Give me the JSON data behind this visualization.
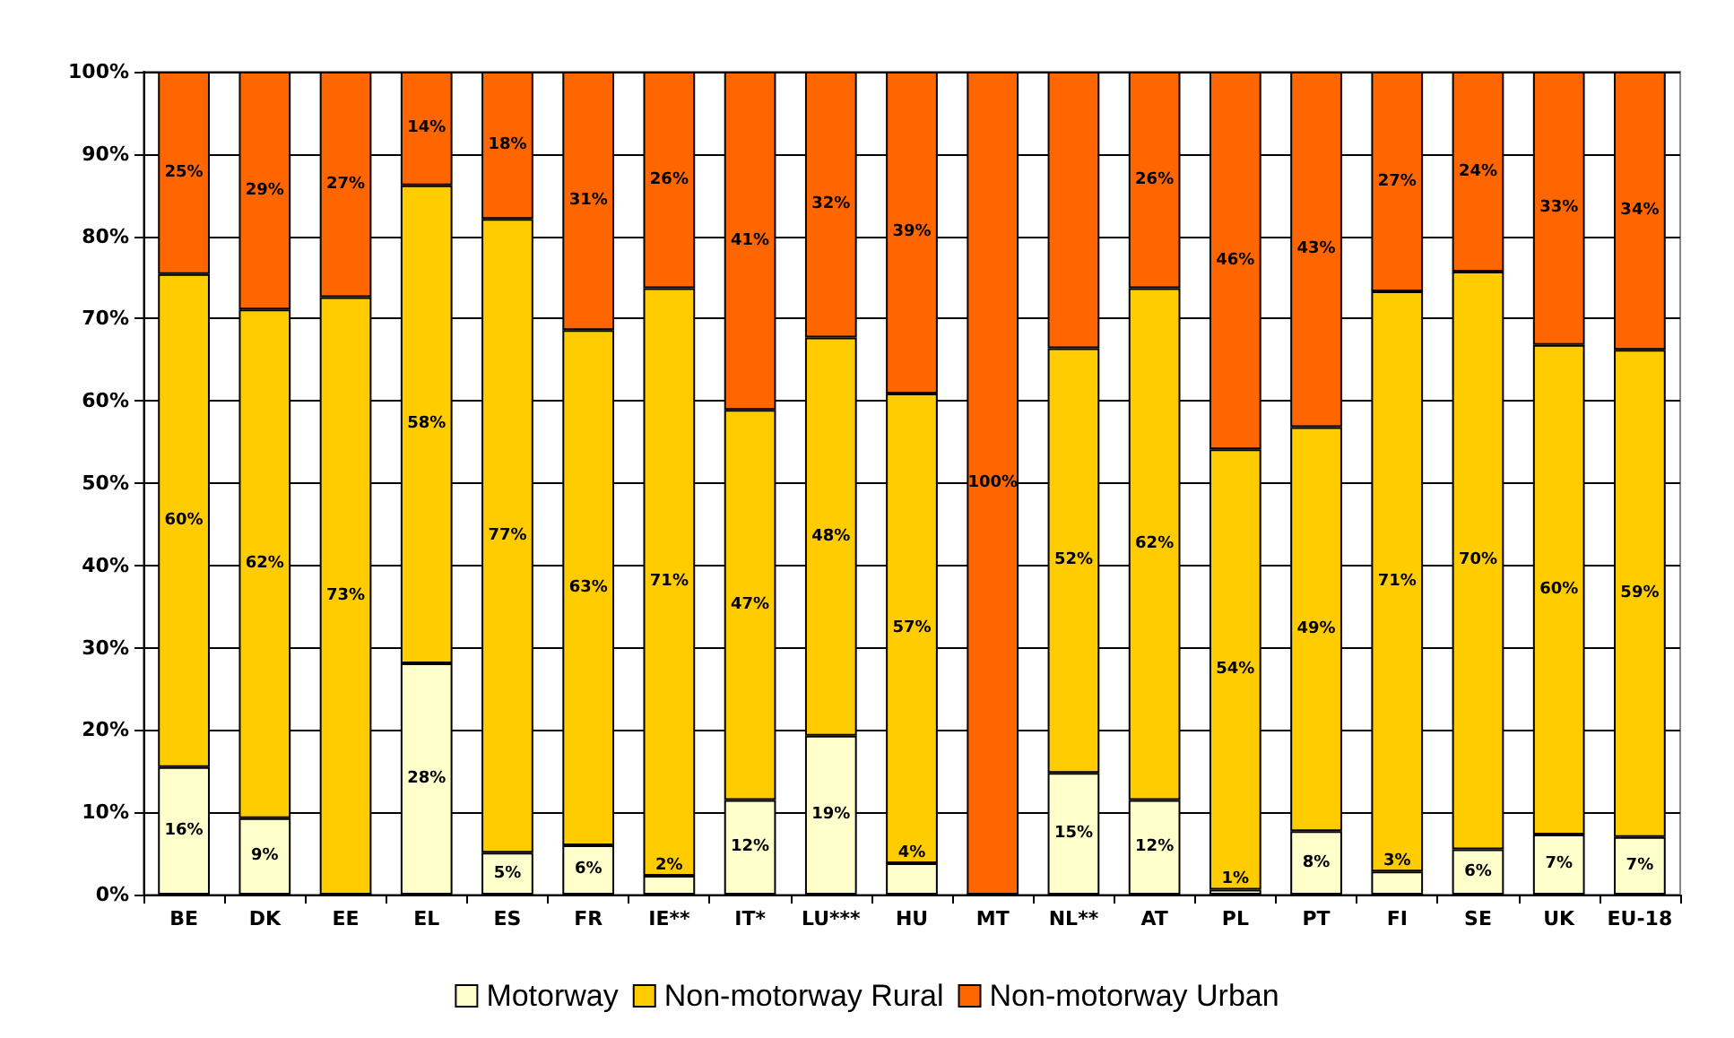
{
  "chart_data": {
    "type": "bar",
    "stacked": true,
    "categories": [
      "BE",
      "DK",
      "EE",
      "EL",
      "ES",
      "FR",
      "IE**",
      "IT*",
      "LU***",
      "HU",
      "MT",
      "NL**",
      "AT",
      "PL",
      "PT",
      "FI",
      "SE",
      "UK",
      "EU-18"
    ],
    "series": [
      {
        "name": "Motorway",
        "color": "#ffffcc",
        "values": [
          15.5,
          9.3,
          0,
          28.1,
          5.1,
          6.0,
          2.3,
          11.5,
          19.3,
          3.8,
          0,
          14.8,
          11.5,
          0.6,
          7.7,
          2.8,
          5.5,
          7.3,
          7.0
        ],
        "value_labels": [
          "16%",
          "9%",
          null,
          "28%",
          "5%",
          "6%",
          "2%",
          "12%",
          "19%",
          "4%",
          null,
          "15%",
          "12%",
          "1%",
          "8%",
          "3%",
          "6%",
          "7%",
          "7%"
        ]
      },
      {
        "name": "Non-motorway Rural",
        "color": "#ffcc00",
        "values": [
          59.9,
          61.8,
          72.6,
          58.1,
          77.0,
          62.6,
          71.4,
          47.4,
          48.4,
          57.1,
          0,
          51.6,
          62.2,
          53.5,
          49.1,
          70.5,
          70.2,
          59.5,
          59.2
        ],
        "value_labels": [
          "60%",
          "62%",
          "73%",
          "58%",
          "77%",
          "63%",
          "71%",
          "47%",
          "48%",
          "57%",
          null,
          "52%",
          "62%",
          "54%",
          "49%",
          "71%",
          "70%",
          "60%",
          "59%"
        ]
      },
      {
        "name": "Non-motorway Urban",
        "color": "#ff6600",
        "values": [
          24.6,
          28.9,
          27.4,
          13.8,
          17.9,
          31.4,
          26.3,
          41.1,
          32.3,
          39.1,
          100,
          33.6,
          26.3,
          45.9,
          43.2,
          26.7,
          24.3,
          33.2,
          33.8
        ],
        "value_labels": [
          "25%",
          "29%",
          "27%",
          "14%",
          "18%",
          "31%",
          "26%",
          "41%",
          "32%",
          "39%",
          "100%",
          null,
          "26%",
          "46%",
          "43%",
          "27%",
          "24%",
          "33%",
          "34%"
        ]
      }
    ],
    "ylim": [
      0,
      100
    ],
    "yticks": [
      {
        "value": 0,
        "label": "0%"
      },
      {
        "value": 10,
        "label": "10%"
      },
      {
        "value": 20,
        "label": "20%"
      },
      {
        "value": 30,
        "label": "30%"
      },
      {
        "value": 40,
        "label": "40%"
      },
      {
        "value": 50,
        "label": "50%"
      },
      {
        "value": 60,
        "label": "60%"
      },
      {
        "value": 70,
        "label": "70%"
      },
      {
        "value": 80,
        "label": "80%"
      },
      {
        "value": 90,
        "label": "90%"
      },
      {
        "value": 100,
        "label": "100%"
      }
    ],
    "grid": "y",
    "legend": "bottom"
  }
}
